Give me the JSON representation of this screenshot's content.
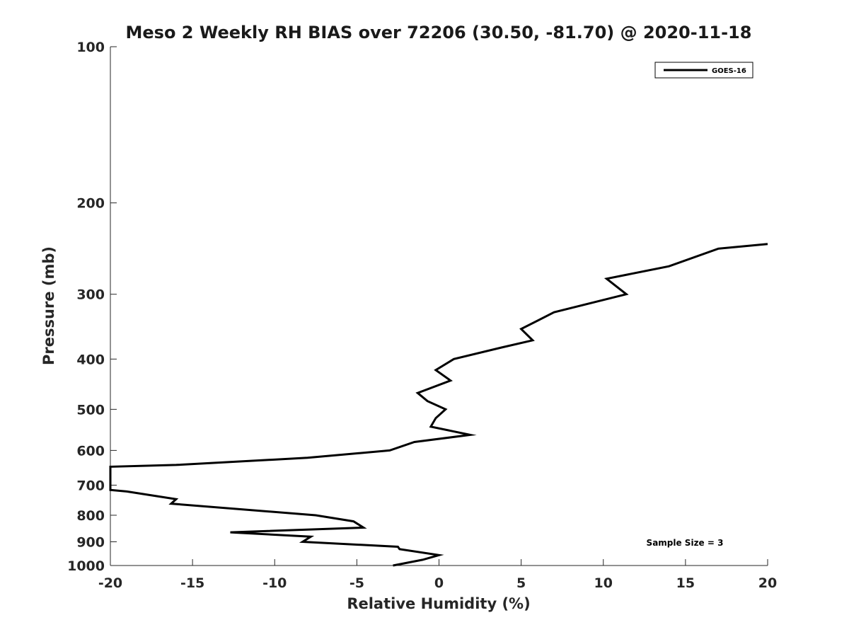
{
  "chart_data": {
    "type": "line",
    "title": "Meso 2 Weekly RH BIAS over 72206 (30.50, -81.70) @ 2020-11-18",
    "xlabel": "Relative Humidity (%)",
    "ylabel": "Pressure (mb)",
    "xlim": [
      -20,
      20
    ],
    "ylim": [
      1000,
      100
    ],
    "y_scale": "log",
    "grid": false,
    "legend_position": "top-right",
    "x_ticks": [
      -20,
      -15,
      -10,
      -5,
      0,
      5,
      10,
      15,
      20
    ],
    "x_tick_labels": [
      "-20",
      "-15",
      "-10",
      "-5",
      "0",
      "5",
      "10",
      "15",
      "20"
    ],
    "y_ticks": [
      100,
      200,
      300,
      400,
      500,
      600,
      700,
      800,
      900,
      1000
    ],
    "y_tick_labels": [
      "100",
      "200",
      "300",
      "400",
      "500",
      "600",
      "700",
      "800",
      "900",
      "1000"
    ],
    "series": [
      {
        "name": "GOES-16",
        "color": "#000000",
        "x": [
          20.0,
          17.0,
          14.0,
          10.2,
          11.4,
          7.0,
          5.0,
          5.7,
          3.8,
          0.9,
          -0.2,
          0.7,
          -1.3,
          -0.7,
          0.4,
          -0.2,
          -0.5,
          1.9,
          -1.5,
          -3.0,
          -8.0,
          -16.0,
          -20.0,
          -20.0,
          -19.0,
          -16.0,
          -16.3,
          -7.5,
          -5.2,
          -4.6,
          -12.7,
          -7.8,
          -8.3,
          -2.5,
          -2.4,
          0.0,
          -1.0,
          -2.8
        ],
        "y": [
          240,
          245,
          265,
          280,
          300,
          325,
          350,
          368,
          380,
          400,
          420,
          440,
          465,
          482,
          500,
          520,
          540,
          560,
          578,
          600,
          620,
          640,
          645,
          715,
          720,
          745,
          760,
          800,
          822,
          845,
          863,
          880,
          900,
          920,
          930,
          955,
          975,
          1000
        ]
      }
    ],
    "annotations": [
      "Sample Size = 3"
    ]
  }
}
